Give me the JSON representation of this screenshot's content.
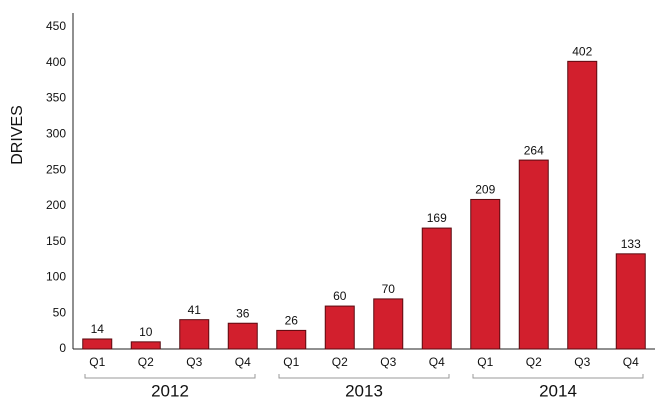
{
  "chart_data": {
    "type": "bar",
    "y_label": "DRIVES",
    "color": "#d21f2d",
    "ylim": [
      0,
      450
    ],
    "yticks": [
      0,
      50,
      100,
      150,
      200,
      250,
      300,
      350,
      400,
      450
    ],
    "grid": false,
    "groups": [
      {
        "name": "2012",
        "categories": [
          "Q1",
          "Q2",
          "Q3",
          "Q4"
        ],
        "values": [
          14,
          10,
          41,
          36
        ]
      },
      {
        "name": "2013",
        "categories": [
          "Q1",
          "Q2",
          "Q3",
          "Q4"
        ],
        "values": [
          26,
          60,
          70,
          169
        ]
      },
      {
        "name": "2014",
        "categories": [
          "Q1",
          "Q2",
          "Q3",
          "Q4"
        ],
        "values": [
          209,
          264,
          402,
          133
        ]
      }
    ]
  }
}
